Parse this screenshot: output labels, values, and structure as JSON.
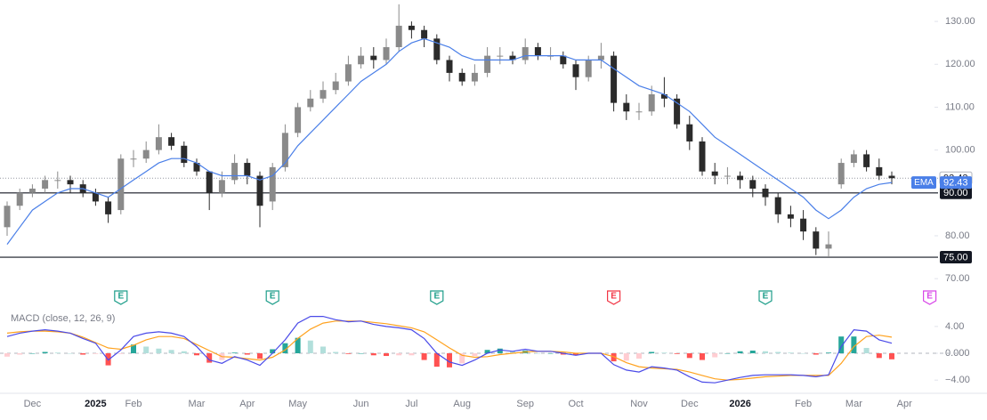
{
  "chart_data": [
    {
      "type": "candlestick",
      "open": [
        82,
        87,
        90,
        91,
        93,
        93,
        92,
        90,
        88,
        86,
        98,
        98,
        100,
        103,
        101,
        97,
        95,
        90,
        93,
        97,
        94,
        88,
        96,
        104,
        110,
        112,
        114,
        116,
        120,
        122,
        121,
        124,
        129,
        128,
        126,
        121,
        118,
        116,
        118,
        122,
        122,
        121,
        124,
        122,
        122,
        120,
        117,
        121,
        122,
        111,
        109,
        109,
        113,
        112,
        106,
        102,
        95,
        94,
        94,
        93,
        91,
        89,
        85,
        84,
        81,
        77,
        92,
        97,
        99,
        96,
        94,
        null,
        null,
        null
      ],
      "high": [
        88,
        91,
        92,
        94,
        95,
        94,
        93,
        91,
        89,
        99,
        100,
        102,
        106,
        104,
        102,
        98,
        95,
        95,
        99,
        98,
        95,
        97,
        106,
        111,
        114,
        116,
        118,
        122,
        124,
        124,
        126,
        134,
        130,
        129,
        127,
        122,
        119,
        120,
        124,
        124,
        123,
        126,
        125,
        124,
        123,
        121,
        122,
        125,
        123,
        113,
        111,
        115,
        117,
        113,
        108,
        103,
        97,
        96,
        95,
        94,
        92,
        90,
        87,
        86,
        82,
        81,
        98,
        100,
        100,
        98,
        95,
        null,
        null,
        null
      ],
      "low": [
        80,
        86,
        89,
        90,
        91,
        90,
        89,
        87,
        83,
        85,
        96,
        97,
        99,
        100,
        96,
        94,
        86,
        89,
        92,
        92,
        82,
        86,
        95,
        103,
        109,
        111,
        113,
        115,
        119,
        119,
        120,
        123,
        126,
        124,
        120,
        116,
        115,
        115,
        117,
        120,
        120,
        120,
        121,
        121,
        119,
        114,
        116,
        119,
        109,
        107,
        107,
        108,
        110,
        105,
        100,
        94,
        92,
        92,
        91,
        89,
        87,
        83,
        82,
        79,
        75.5,
        75,
        91,
        96,
        95,
        93,
        92,
        null,
        null,
        null
      ],
      "close": [
        87,
        90,
        91,
        93,
        93,
        92,
        90,
        88,
        85,
        98,
        98,
        100,
        103,
        101,
        97,
        95,
        90,
        93,
        97,
        94,
        87,
        96,
        104,
        110,
        112,
        114,
        116,
        120,
        122,
        121,
        124,
        129,
        128,
        126,
        121,
        118,
        116,
        118,
        122,
        122,
        121,
        124,
        122,
        122,
        120,
        117,
        121,
        122,
        111,
        109,
        109,
        113,
        112,
        106,
        102,
        95,
        94,
        94,
        93,
        91,
        89,
        85,
        84,
        81,
        77,
        78,
        97,
        99,
        96,
        94,
        93.43,
        null,
        null,
        null
      ],
      "candle_colors": {
        "up": "#8a8a8a",
        "down": "#2b2b2b"
      },
      "ema": {
        "name": "EMA",
        "color": "#4a7fe8",
        "values": [
          78,
          82,
          86,
          88,
          90,
          91,
          91,
          90,
          89,
          91,
          93,
          95,
          97,
          98,
          98,
          97,
          95,
          94,
          94,
          94,
          93,
          94,
          97,
          101,
          104,
          107,
          110,
          113,
          116,
          118,
          120,
          123,
          125,
          126,
          125,
          124,
          122,
          121,
          121,
          121,
          121,
          122,
          122,
          122,
          122,
          121,
          121,
          121,
          119,
          117,
          115,
          114,
          113,
          111,
          109,
          106,
          103,
          101,
          99,
          97,
          95,
          93,
          91,
          89,
          86,
          84,
          86,
          89,
          91,
          92,
          92.43,
          null,
          null,
          null
        ],
        "last": {
          "value": 92.43,
          "label": "92.43"
        }
      },
      "last_price": {
        "value": 93.43,
        "label": "93.43"
      },
      "levels": [
        {
          "value": 90,
          "label": "90.00"
        },
        {
          "value": 75,
          "label": "75.00"
        }
      ],
      "ylim": [
        66.5,
        135
      ],
      "yticks": [
        {
          "value": 70,
          "label": "70.00"
        },
        {
          "value": 80,
          "label": "80.00"
        },
        {
          "value": 90,
          "label": "90.00"
        },
        {
          "value": 100,
          "label": "100.00"
        },
        {
          "value": 110,
          "label": "110.00"
        },
        {
          "value": 120,
          "label": "120.00"
        },
        {
          "value": 130,
          "label": "130.00"
        }
      ],
      "events": [
        {
          "label": "E",
          "at": 9,
          "color": "#1e9e8a"
        },
        {
          "label": "E",
          "at": 21,
          "color": "#1e9e8a"
        },
        {
          "label": "E",
          "at": 34,
          "color": "#1e9e8a"
        },
        {
          "label": "E",
          "at": 48,
          "color": "#f23645"
        },
        {
          "label": "E",
          "at": 60,
          "color": "#1e9e8a"
        },
        {
          "label": "E",
          "at": 73,
          "color": "#d846e8"
        }
      ]
    },
    {
      "type": "macd",
      "title": "MACD (close, 12, 26, 9)",
      "categories": [
        null,
        null,
        "Dec",
        null,
        null,
        null,
        null,
        "2025",
        null,
        null,
        "Feb",
        null,
        null,
        null,
        null,
        "Mar",
        null,
        null,
        null,
        "Apr",
        null,
        null,
        null,
        "May",
        null,
        null,
        null,
        null,
        "Jun",
        null,
        null,
        null,
        "Jul",
        null,
        null,
        null,
        "Aug",
        null,
        null,
        null,
        null,
        "Sep",
        null,
        null,
        null,
        "Oct",
        null,
        null,
        null,
        null,
        "Nov",
        null,
        null,
        null,
        "Dec",
        null,
        null,
        null,
        "2026",
        null,
        null,
        null,
        null,
        "Feb",
        null,
        null,
        null,
        "Mar",
        null,
        null,
        null,
        "Apr",
        null,
        null
      ],
      "macd": {
        "color": "#4a4ae8",
        "values": [
          2.5,
          3,
          3.3,
          3.5,
          3.3,
          3,
          2.2,
          1.5,
          -1,
          0.5,
          2.5,
          3,
          3.2,
          3,
          2.5,
          1,
          -1,
          -1.5,
          -0.5,
          -1,
          -1.8,
          0,
          2,
          4.5,
          5.5,
          5.5,
          5,
          4.7,
          4.8,
          4.3,
          4,
          3.8,
          3.5,
          2.2,
          0,
          -1.3,
          -1.8,
          -1,
          0,
          0.5,
          0.3,
          0.6,
          0.3,
          0.3,
          0,
          -0.3,
          0,
          0,
          -1.7,
          -2.5,
          -2.8,
          -2,
          -2.2,
          -2.5,
          -3.5,
          -4.3,
          -4.4,
          -4,
          -3.6,
          -3.3,
          -3.2,
          -3.2,
          -3.2,
          -3.3,
          -3.5,
          -3.2,
          1,
          3.5,
          3.3,
          2,
          1.5,
          null,
          null,
          null
        ]
      },
      "signal": {
        "color": "#ffa21f",
        "values": [
          3,
          3.2,
          3.3,
          3.3,
          3.2,
          3,
          2.4,
          1.6,
          0.8,
          0.6,
          1.2,
          2,
          2.5,
          2.5,
          2.2,
          1.3,
          0.4,
          -0.5,
          -0.6,
          -0.8,
          -1,
          -0.6,
          0.5,
          2.2,
          3.6,
          4.5,
          4.8,
          4.8,
          4.8,
          4.6,
          4.4,
          4.1,
          3.8,
          3.2,
          2,
          0.8,
          -0.3,
          -0.6,
          -0.5,
          -0.2,
          0,
          0.2,
          0.3,
          0.3,
          0.2,
          0,
          0,
          0,
          -0.5,
          -1.4,
          -2,
          -2.2,
          -2.3,
          -2.4,
          -2.8,
          -3.3,
          -3.8,
          -4,
          -3.9,
          -3.7,
          -3.5,
          -3.4,
          -3.3,
          -3.3,
          -3.3,
          -3.3,
          -1.5,
          1,
          2.5,
          2.7,
          2.4,
          null,
          null,
          null
        ]
      },
      "histogram": {
        "values": [
          -0.5,
          -0.2,
          0,
          0.2,
          0.1,
          0,
          -0.2,
          -0.1,
          -1.8,
          -0.1,
          1.3,
          1,
          0.7,
          0.5,
          0.3,
          -0.3,
          -1.4,
          -1,
          0.1,
          -0.2,
          -0.8,
          0.6,
          1.5,
          2.3,
          1.9,
          1,
          0.2,
          -0.1,
          0,
          -0.3,
          -0.4,
          -0.3,
          -0.3,
          -1,
          -2,
          -2.1,
          -1.5,
          -0.4,
          0.5,
          0.7,
          0.3,
          0.4,
          0,
          0,
          -0.2,
          -0.3,
          0,
          0,
          -1.2,
          -1.1,
          -0.8,
          0.2,
          0.1,
          -0.1,
          -0.7,
          -1,
          -0.6,
          0,
          0.3,
          0.4,
          0.3,
          0.2,
          0.1,
          0,
          -0.2,
          0.1,
          2.5,
          2.5,
          0.8,
          -0.7,
          -0.9,
          null,
          null,
          null
        ],
        "colors": {
          "up_rising": "#26a69a",
          "up_falling": "#b2dfdb",
          "down_falling": "#ff5252",
          "down_rising": "#ffcdd2"
        }
      },
      "ylim": [
        -5.7,
        6.9
      ],
      "yticks": [
        {
          "value": -4,
          "label": "−4.00"
        },
        {
          "value": 0,
          "label": "0.000"
        },
        {
          "value": 4,
          "label": "4.00"
        }
      ]
    }
  ]
}
